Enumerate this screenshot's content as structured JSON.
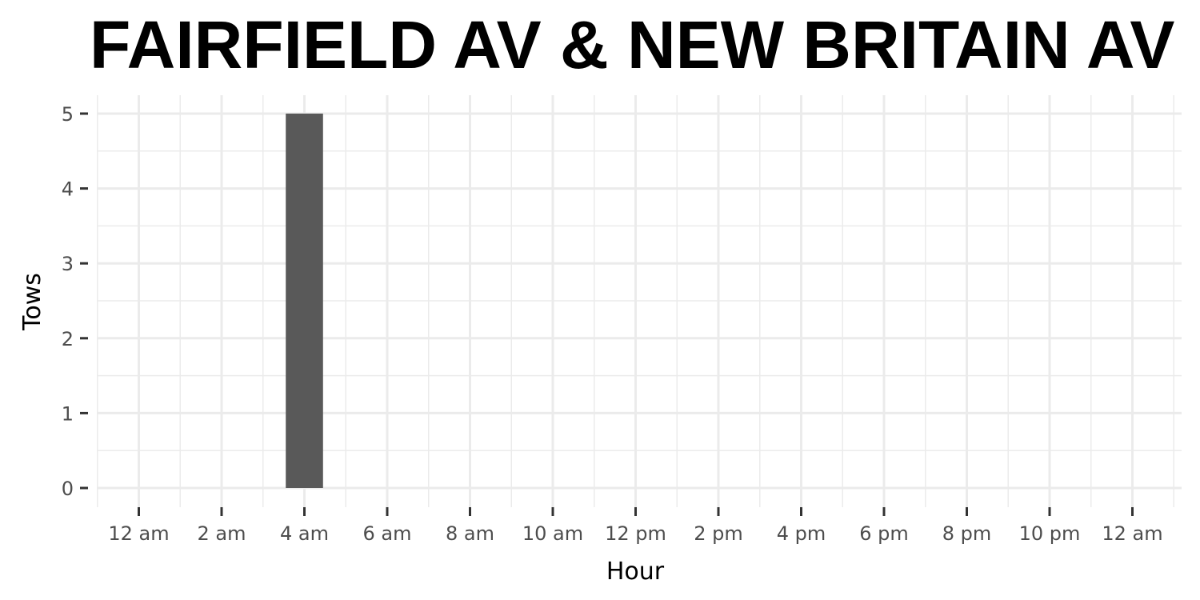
{
  "chart_data": {
    "type": "bar",
    "title": "FAIRFIELD AV & NEW BRITAIN AV",
    "xlabel": "Hour",
    "ylabel": "Tows",
    "x_tick_labels": [
      "12 am",
      "2 am",
      "4 am",
      "6 am",
      "8 am",
      "10 am",
      "12 pm",
      "2 pm",
      "4 pm",
      "6 pm",
      "8 pm",
      "10 pm",
      "12 am"
    ],
    "y_tick_labels": [
      "0",
      "1",
      "2",
      "3",
      "4",
      "5"
    ],
    "xlim": [
      0,
      24
    ],
    "ylim": [
      0,
      5
    ],
    "grid": true,
    "bar_color": "#595959",
    "series": [
      {
        "points": [
          {
            "hour": 4,
            "value": 5
          }
        ]
      }
    ]
  }
}
